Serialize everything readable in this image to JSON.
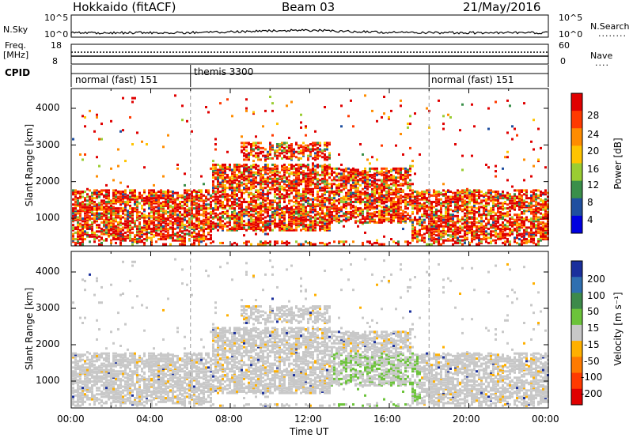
{
  "header": {
    "station": "Hokkaido (fitACF)",
    "beam": "Beam 03",
    "date": "21/May/2016"
  },
  "top_panels": {
    "nsky_label": "N.Sky",
    "nsky_ticks": [
      "10^5",
      "10^0"
    ],
    "nsearch_label": "N.Search",
    "nsearch_ticks": [
      "10^5",
      "10^0"
    ],
    "freq_label": "Freq.",
    "freq_unit": "[MHz]",
    "freq_ticks": [
      "18",
      "8"
    ],
    "nave_label": "Nave",
    "nave_ticks": [
      "60",
      "0"
    ],
    "cpid_label": "CPID",
    "cpid_segments": [
      {
        "label": "normal (fast) 151",
        "start_hour": 0,
        "end_hour": 6
      },
      {
        "label": "themis 3300",
        "start_hour": 6,
        "end_hour": 18
      },
      {
        "label": "normal (fast) 151",
        "start_hour": 18,
        "end_hour": 24
      }
    ]
  },
  "power_colorbar": {
    "title": "Power [dB]",
    "ticks": [
      "28",
      "24",
      "20",
      "16",
      "12",
      "8",
      "4"
    ],
    "colors": [
      "#e00000",
      "#ff3a00",
      "#ff8c00",
      "#ffc400",
      "#9acd32",
      "#3a8f4a",
      "#1f4fa0",
      "#0000e0"
    ]
  },
  "velocity_colorbar": {
    "title": "Velocity [m s⁻¹]",
    "ticks": [
      "200",
      "100",
      "50",
      "15",
      "-15",
      "-50",
      "-100",
      "-200"
    ],
    "colors": [
      "#1a2f9c",
      "#2f6fb0",
      "#3d8a4a",
      "#6cc33a",
      "#c8c8c8",
      "#ffb000",
      "#ff7a00",
      "#ff3a00",
      "#e00000"
    ]
  },
  "chart_data": {
    "type": "heatmap",
    "x_label": "Time UT",
    "x_ticks": [
      "00:00",
      "04:00",
      "08:00",
      "12:00",
      "16:00",
      "20:00",
      "00:00"
    ],
    "xlim_hours": [
      0,
      24
    ],
    "y_label": "Slant Range [km]",
    "y_ticks": [
      "4000",
      "3000",
      "2000",
      "1000"
    ],
    "ylim_km": [
      180,
      4500
    ],
    "dashed_time_markers_hours": [
      6,
      18
    ]
  }
}
